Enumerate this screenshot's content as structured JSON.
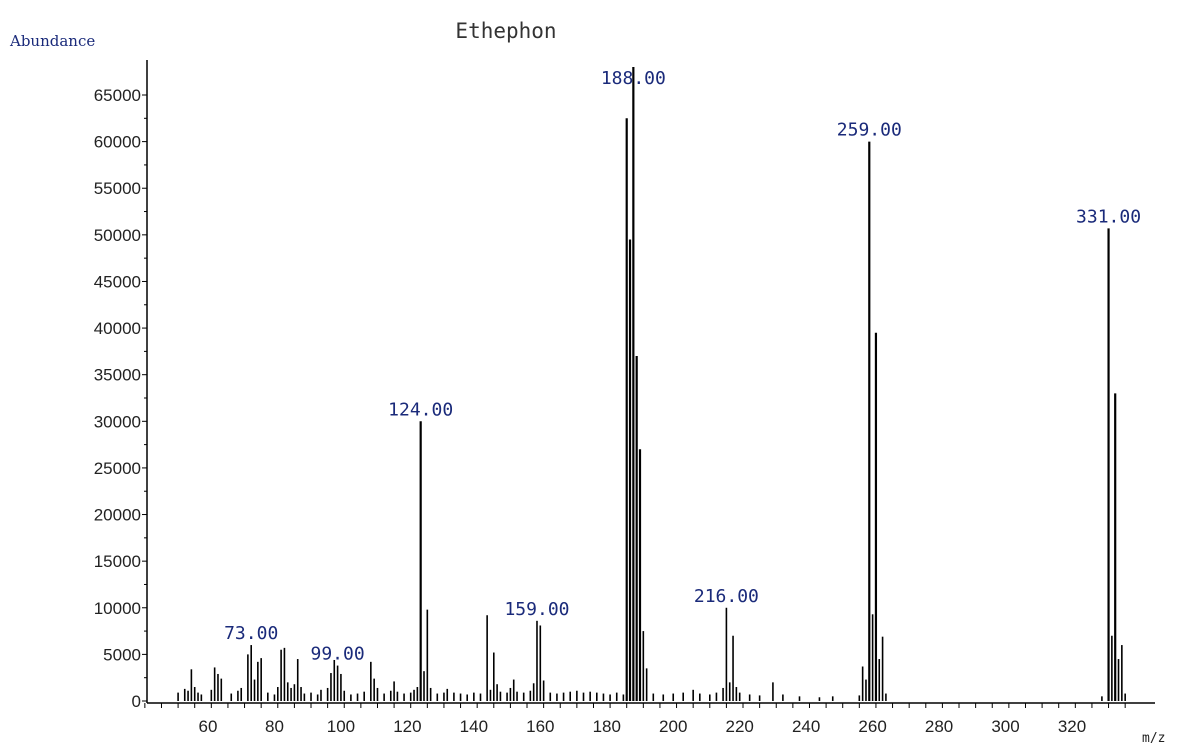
{
  "chart_data": {
    "type": "bar",
    "title": "Ethephon",
    "ylabel": "Abundance",
    "xlabel": "m/z",
    "xlim": [
      41,
      340
    ],
    "ylim": [
      0,
      68000
    ],
    "xticks": [
      60,
      80,
      100,
      120,
      140,
      160,
      180,
      200,
      220,
      240,
      260,
      280,
      300,
      320
    ],
    "yticks": [
      0,
      5000,
      10000,
      15000,
      20000,
      25000,
      30000,
      35000,
      40000,
      45000,
      50000,
      55000,
      60000,
      65000
    ],
    "peaks": [
      {
        "x": 51,
        "y": 900
      },
      {
        "x": 53,
        "y": 1300
      },
      {
        "x": 54,
        "y": 1100
      },
      {
        "x": 55,
        "y": 3400
      },
      {
        "x": 56,
        "y": 1500
      },
      {
        "x": 57,
        "y": 900
      },
      {
        "x": 58,
        "y": 700
      },
      {
        "x": 61,
        "y": 1200
      },
      {
        "x": 62,
        "y": 3600
      },
      {
        "x": 63,
        "y": 2900
      },
      {
        "x": 64,
        "y": 2400
      },
      {
        "x": 67,
        "y": 800
      },
      {
        "x": 69,
        "y": 1100
      },
      {
        "x": 70,
        "y": 1400
      },
      {
        "x": 72,
        "y": 5000
      },
      {
        "x": 73,
        "y": 6000
      },
      {
        "x": 74,
        "y": 2300
      },
      {
        "x": 75,
        "y": 4200
      },
      {
        "x": 76,
        "y": 4600
      },
      {
        "x": 78,
        "y": 900
      },
      {
        "x": 80,
        "y": 700
      },
      {
        "x": 81,
        "y": 1500
      },
      {
        "x": 82,
        "y": 5500
      },
      {
        "x": 83,
        "y": 5700
      },
      {
        "x": 84,
        "y": 2000
      },
      {
        "x": 85,
        "y": 1400
      },
      {
        "x": 86,
        "y": 1800
      },
      {
        "x": 87,
        "y": 4500
      },
      {
        "x": 88,
        "y": 1500
      },
      {
        "x": 89,
        "y": 800
      },
      {
        "x": 91,
        "y": 900
      },
      {
        "x": 93,
        "y": 700
      },
      {
        "x": 94,
        "y": 1200
      },
      {
        "x": 96,
        "y": 1400
      },
      {
        "x": 97,
        "y": 3000
      },
      {
        "x": 98,
        "y": 4400
      },
      {
        "x": 99,
        "y": 3800
      },
      {
        "x": 100,
        "y": 2900
      },
      {
        "x": 101,
        "y": 1100
      },
      {
        "x": 103,
        "y": 700
      },
      {
        "x": 105,
        "y": 800
      },
      {
        "x": 107,
        "y": 1000
      },
      {
        "x": 109,
        "y": 4200
      },
      {
        "x": 110,
        "y": 2400
      },
      {
        "x": 111,
        "y": 1400
      },
      {
        "x": 113,
        "y": 800
      },
      {
        "x": 115,
        "y": 1100
      },
      {
        "x": 116,
        "y": 2100
      },
      {
        "x": 117,
        "y": 1000
      },
      {
        "x": 119,
        "y": 800
      },
      {
        "x": 121,
        "y": 900
      },
      {
        "x": 122,
        "y": 1200
      },
      {
        "x": 123,
        "y": 1500
      },
      {
        "x": 124,
        "y": 30000
      },
      {
        "x": 125,
        "y": 3200
      },
      {
        "x": 126,
        "y": 9800
      },
      {
        "x": 127,
        "y": 1400
      },
      {
        "x": 129,
        "y": 800
      },
      {
        "x": 131,
        "y": 900
      },
      {
        "x": 132,
        "y": 1300
      },
      {
        "x": 134,
        "y": 900
      },
      {
        "x": 136,
        "y": 800
      },
      {
        "x": 138,
        "y": 700
      },
      {
        "x": 140,
        "y": 900
      },
      {
        "x": 142,
        "y": 800
      },
      {
        "x": 144,
        "y": 9200
      },
      {
        "x": 145,
        "y": 1200
      },
      {
        "x": 146,
        "y": 5200
      },
      {
        "x": 147,
        "y": 1800
      },
      {
        "x": 148,
        "y": 1000
      },
      {
        "x": 150,
        "y": 900
      },
      {
        "x": 151,
        "y": 1400
      },
      {
        "x": 152,
        "y": 2300
      },
      {
        "x": 153,
        "y": 1000
      },
      {
        "x": 155,
        "y": 900
      },
      {
        "x": 157,
        "y": 1100
      },
      {
        "x": 158,
        "y": 1900
      },
      {
        "x": 159,
        "y": 8600
      },
      {
        "x": 160,
        "y": 8100
      },
      {
        "x": 161,
        "y": 2200
      },
      {
        "x": 163,
        "y": 900
      },
      {
        "x": 165,
        "y": 800
      },
      {
        "x": 167,
        "y": 900
      },
      {
        "x": 169,
        "y": 1000
      },
      {
        "x": 171,
        "y": 1100
      },
      {
        "x": 173,
        "y": 900
      },
      {
        "x": 175,
        "y": 1000
      },
      {
        "x": 177,
        "y": 900
      },
      {
        "x": 179,
        "y": 800
      },
      {
        "x": 181,
        "y": 700
      },
      {
        "x": 183,
        "y": 900
      },
      {
        "x": 185,
        "y": 700
      },
      {
        "x": 186,
        "y": 62500
      },
      {
        "x": 187,
        "y": 49500
      },
      {
        "x": 188,
        "y": 68000
      },
      {
        "x": 189,
        "y": 37000
      },
      {
        "x": 190,
        "y": 27000
      },
      {
        "x": 191,
        "y": 7500
      },
      {
        "x": 192,
        "y": 3500
      },
      {
        "x": 194,
        "y": 800
      },
      {
        "x": 197,
        "y": 700
      },
      {
        "x": 200,
        "y": 800
      },
      {
        "x": 203,
        "y": 900
      },
      {
        "x": 206,
        "y": 1200
      },
      {
        "x": 208,
        "y": 800
      },
      {
        "x": 211,
        "y": 700
      },
      {
        "x": 213,
        "y": 900
      },
      {
        "x": 215,
        "y": 1400
      },
      {
        "x": 216,
        "y": 10000
      },
      {
        "x": 217,
        "y": 2000
      },
      {
        "x": 218,
        "y": 7000
      },
      {
        "x": 219,
        "y": 1500
      },
      {
        "x": 220,
        "y": 900
      },
      {
        "x": 223,
        "y": 700
      },
      {
        "x": 226,
        "y": 600
      },
      {
        "x": 230,
        "y": 2000
      },
      {
        "x": 233,
        "y": 700
      },
      {
        "x": 238,
        "y": 500
      },
      {
        "x": 244,
        "y": 400
      },
      {
        "x": 248,
        "y": 500
      },
      {
        "x": 256,
        "y": 600
      },
      {
        "x": 257,
        "y": 3700
      },
      {
        "x": 258,
        "y": 2300
      },
      {
        "x": 259,
        "y": 60000
      },
      {
        "x": 260,
        "y": 9300
      },
      {
        "x": 261,
        "y": 39500
      },
      {
        "x": 262,
        "y": 4500
      },
      {
        "x": 263,
        "y": 6900
      },
      {
        "x": 264,
        "y": 800
      },
      {
        "x": 329,
        "y": 500
      },
      {
        "x": 331,
        "y": 50700
      },
      {
        "x": 332,
        "y": 7000
      },
      {
        "x": 333,
        "y": 33000
      },
      {
        "x": 334,
        "y": 4500
      },
      {
        "x": 335,
        "y": 6000
      },
      {
        "x": 336,
        "y": 800
      }
    ],
    "annotations": [
      {
        "x": 73,
        "y": 6000,
        "text": "73.00"
      },
      {
        "x": 99,
        "y": 3800,
        "text": "99.00"
      },
      {
        "x": 124,
        "y": 30000,
        "text": "124.00"
      },
      {
        "x": 159,
        "y": 8600,
        "text": "159.00"
      },
      {
        "x": 188,
        "y": 68000,
        "text": "188.00"
      },
      {
        "x": 216,
        "y": 10000,
        "text": "216.00"
      },
      {
        "x": 259,
        "y": 60000,
        "text": "259.00"
      },
      {
        "x": 331,
        "y": 50700,
        "text": "331.00"
      }
    ]
  }
}
